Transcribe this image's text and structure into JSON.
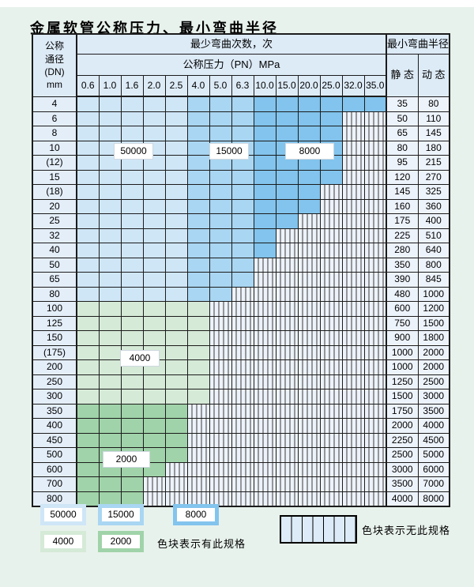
{
  "title": "金属软管公称压力、最小弯曲半径",
  "table": {
    "header": {
      "dn_lines": [
        "公称",
        "通径",
        "(DN)",
        "mm"
      ],
      "bend_cycles_label": "最少弯曲次数，次",
      "pressure_label": "公称压力（PN）MPa",
      "pressures": [
        "0.6",
        "1.0",
        "1.6",
        "2.0",
        "2.5",
        "4.0",
        "5.0",
        "6.3",
        "10.0",
        "15.0",
        "20.0",
        "25.0",
        "32.0",
        "35.0"
      ],
      "radius_label": "最小弯曲半径",
      "static_label": "静 态",
      "dynamic_label": "动 态"
    },
    "rows": [
      {
        "dn": "4",
        "colored_cols": 14,
        "static": "35",
        "dynamic": "80"
      },
      {
        "dn": "6",
        "colored_cols": 12,
        "static": "50",
        "dynamic": "110"
      },
      {
        "dn": "8",
        "colored_cols": 12,
        "static": "65",
        "dynamic": "145"
      },
      {
        "dn": "10",
        "colored_cols": 12,
        "static": "80",
        "dynamic": "180"
      },
      {
        "dn": "(12)",
        "colored_cols": 12,
        "static": "95",
        "dynamic": "215"
      },
      {
        "dn": "15",
        "colored_cols": 12,
        "static": "120",
        "dynamic": "270"
      },
      {
        "dn": "(18)",
        "colored_cols": 11,
        "static": "145",
        "dynamic": "325"
      },
      {
        "dn": "20",
        "colored_cols": 11,
        "static": "160",
        "dynamic": "360"
      },
      {
        "dn": "25",
        "colored_cols": 10,
        "static": "175",
        "dynamic": "400"
      },
      {
        "dn": "32",
        "colored_cols": 9,
        "static": "225",
        "dynamic": "510"
      },
      {
        "dn": "40",
        "colored_cols": 9,
        "static": "280",
        "dynamic": "640"
      },
      {
        "dn": "50",
        "colored_cols": 8,
        "static": "350",
        "dynamic": "800"
      },
      {
        "dn": "65",
        "colored_cols": 8,
        "static": "390",
        "dynamic": "845"
      },
      {
        "dn": "80",
        "colored_cols": 7,
        "static": "480",
        "dynamic": "1000"
      },
      {
        "dn": "100",
        "colored_cols": 6,
        "static": "600",
        "dynamic": "1200"
      },
      {
        "dn": "125",
        "colored_cols": 6,
        "static": "750",
        "dynamic": "1500"
      },
      {
        "dn": "150",
        "colored_cols": 6,
        "static": "900",
        "dynamic": "1800"
      },
      {
        "dn": "(175)",
        "colored_cols": 6,
        "static": "1000",
        "dynamic": "2000"
      },
      {
        "dn": "200",
        "colored_cols": 6,
        "static": "1000",
        "dynamic": "2000"
      },
      {
        "dn": "250",
        "colored_cols": 6,
        "static": "1250",
        "dynamic": "2500"
      },
      {
        "dn": "300",
        "colored_cols": 6,
        "static": "1500",
        "dynamic": "3000"
      },
      {
        "dn": "350",
        "colored_cols": 5,
        "static": "1750",
        "dynamic": "3500"
      },
      {
        "dn": "400",
        "colored_cols": 5,
        "static": "2000",
        "dynamic": "4000"
      },
      {
        "dn": "450",
        "colored_cols": 5,
        "static": "2250",
        "dynamic": "4500"
      },
      {
        "dn": "500",
        "colored_cols": 5,
        "static": "2500",
        "dynamic": "5000"
      },
      {
        "dn": "600",
        "colored_cols": 4,
        "static": "3000",
        "dynamic": "6000"
      },
      {
        "dn": "700",
        "colored_cols": 3,
        "static": "3500",
        "dynamic": "7000"
      },
      {
        "dn": "800",
        "colored_cols": 3,
        "static": "4000",
        "dynamic": "8000"
      }
    ],
    "zone_rules": {
      "blue_rows_count": 14,
      "light_blue_max_col": 5,
      "medium_blue_max_col": 8,
      "light_green_max_row": 21
    },
    "zone_labels": {
      "l50000": "50000",
      "l15000": "15000",
      "l8000": "8000",
      "l4000": "4000",
      "l2000": "2000"
    }
  },
  "legend": {
    "chips": [
      {
        "label": "50000",
        "color": "#cfe6f7"
      },
      {
        "label": "15000",
        "color": "#a9d6f2"
      },
      {
        "label": "8000",
        "color": "#82c4ed"
      },
      {
        "label": "4000",
        "color": "#d5ead7"
      },
      {
        "label": "2000",
        "color": "#a0d3a9"
      }
    ],
    "available_text": "色块表示有此规格",
    "unavailable_text": "色块表示无此规格"
  },
  "colors": {
    "page_bg": "#e8f2ec",
    "light_blue": "#cfe6f7",
    "medium_blue": "#a9d6f2",
    "dark_blue": "#82c4ed",
    "light_green": "#d5ead7",
    "medium_green": "#a0d3a9",
    "na_bg": "#edf3fa",
    "grid_line": "#1c1c1c"
  }
}
